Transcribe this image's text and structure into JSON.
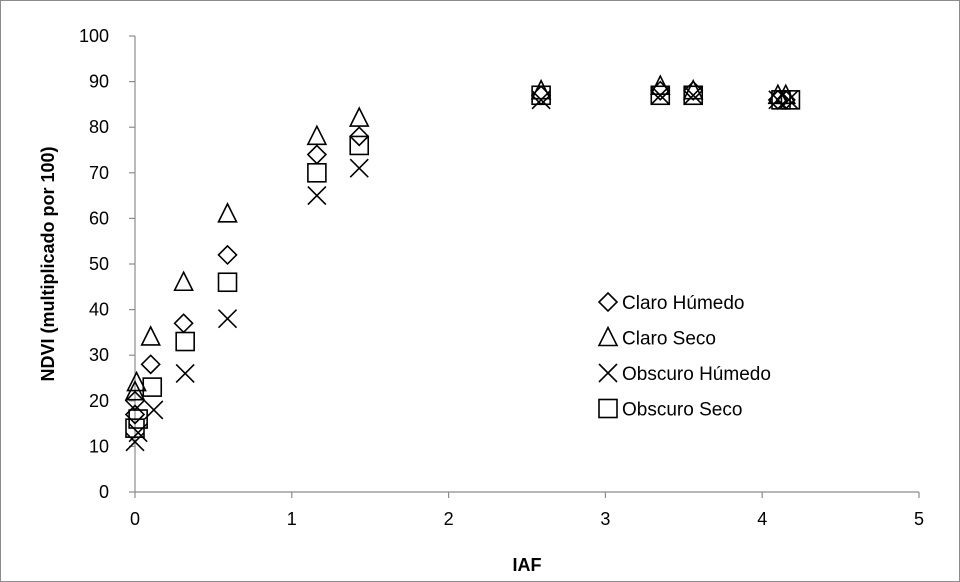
{
  "chart_data": {
    "type": "scatter",
    "title": "",
    "xlabel": "IAF",
    "ylabel": "NDVI (multiplicado por 100)",
    "xlim": [
      0,
      5
    ],
    "ylim": [
      0,
      100
    ],
    "xticks": [
      "0",
      "1",
      "2",
      "3",
      "4",
      "5"
    ],
    "yticks": [
      "0",
      "10",
      "20",
      "30",
      "40",
      "50",
      "60",
      "70",
      "80",
      "90",
      "100"
    ],
    "grid": false,
    "legend_position": "right-middle",
    "series": [
      {
        "name": "Claro Húmedo",
        "marker": "diamond",
        "x": [
          0.0,
          0.0,
          0.1,
          0.31,
          0.59,
          1.16,
          1.43,
          2.59,
          3.35,
          3.56,
          4.1,
          4.15
        ],
        "y": [
          17,
          20,
          28,
          37,
          52,
          74,
          78,
          87,
          88,
          88,
          86,
          86
        ]
      },
      {
        "name": "Claro Seco",
        "marker": "triangle",
        "x": [
          0.0,
          0.01,
          0.1,
          0.31,
          0.59,
          1.16,
          1.43,
          2.59,
          3.35,
          3.56,
          4.1,
          4.15
        ],
        "y": [
          22,
          24,
          34,
          46,
          61,
          78,
          82,
          88,
          89,
          88,
          87,
          87
        ]
      },
      {
        "name": "Obscuro Húmedo",
        "marker": "x",
        "x": [
          0.0,
          0.02,
          0.12,
          0.32,
          0.59,
          1.16,
          1.43,
          2.59,
          3.35,
          3.56,
          4.1,
          4.17
        ],
        "y": [
          11,
          13,
          18,
          26,
          38,
          65,
          71,
          86,
          87,
          87,
          86,
          86
        ]
      },
      {
        "name": "Obscuro Seco",
        "marker": "square",
        "x": [
          0.0,
          0.02,
          0.11,
          0.32,
          0.59,
          1.16,
          1.43,
          2.59,
          3.35,
          3.56,
          4.12,
          4.18
        ],
        "y": [
          14,
          16,
          23,
          33,
          46,
          70,
          76,
          87,
          87,
          87,
          86,
          86
        ]
      }
    ]
  }
}
